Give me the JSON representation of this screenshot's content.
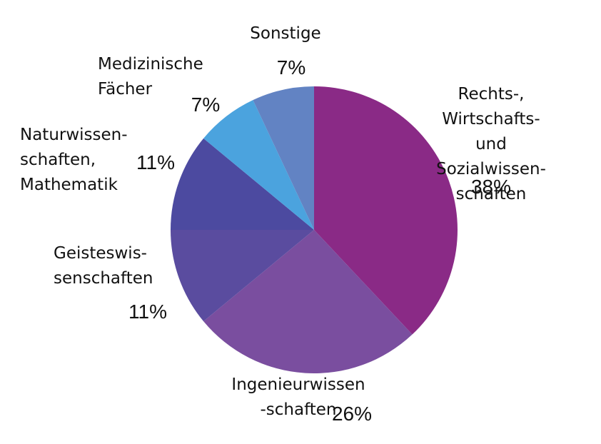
{
  "chart_data": {
    "type": "pie",
    "categories": [
      "Rechts-, Wirtschafts-\nund Sozialwissen-\nschaften",
      "Ingenieurwissen\n-schaften",
      "Geisteswis-\nsenschaften",
      "Naturwissen-\nschaften,\nMathematik",
      "Medizinische\nFächer",
      "Sonstige"
    ],
    "values": [
      38,
      26,
      11,
      11,
      7,
      7
    ],
    "value_labels": [
      "38%",
      "26%",
      "11%",
      "11%",
      "7%",
      "7%"
    ],
    "colors": [
      "#8a2a86",
      "#7a4e9f",
      "#5a4c9f",
      "#4c4aa0",
      "#4ba3de",
      "#6283c3"
    ]
  }
}
